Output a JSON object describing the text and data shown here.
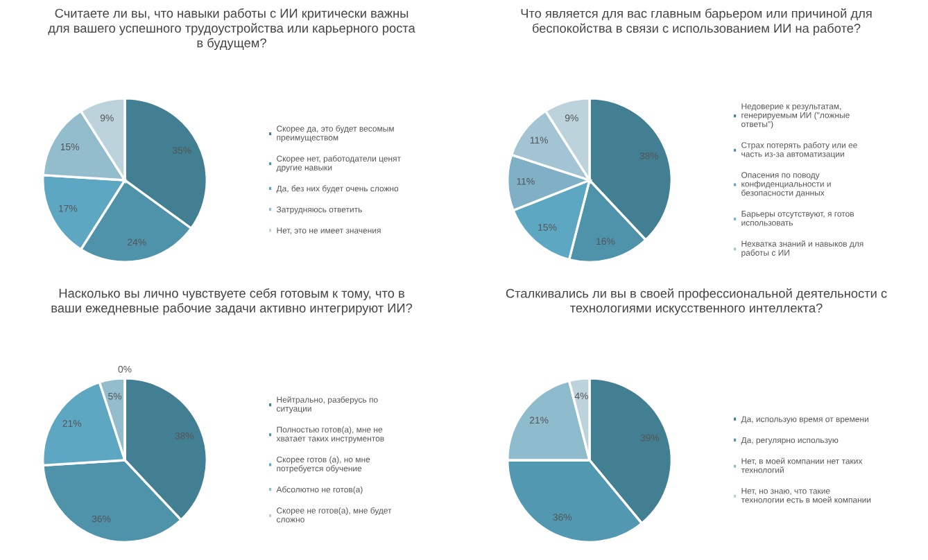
{
  "chart_data": [
    {
      "type": "pie",
      "title": "Считаете ли вы, что навыки работы с ИИ критически важны для вашего успешного трудоустройства или карьерного роста в будущем?",
      "categories": [
        "Скорее да, это будет весомым преимуществом",
        "Скорее нет, работодатели ценят другие навыки",
        "Да, без них будет очень сложно",
        "Затрудняюсь ответить",
        "Нет, это не имеет значения"
      ],
      "values": [
        35,
        24,
        17,
        15,
        9
      ],
      "value_labels": [
        "35%",
        "24%",
        "17%",
        "15%",
        "9%"
      ],
      "colors": [
        "#437f93",
        "#4f93ab",
        "#5ea7c2",
        "#93bccd",
        "#bcd3dc"
      ],
      "legend": "right"
    },
    {
      "type": "pie",
      "title": "Что является для вас главным барьером или причиной для беспокойства в связи с использованием ИИ на работе?",
      "categories": [
        "Недоверие к результатам, генерируемым ИИ (\"ложные ответы\")",
        "Страх потерять работу или ее часть из-за автоматизации",
        "Опасения по поводу конфиденциальности и безопасности данных",
        "Барьеры отсутствуют, я готов использовать",
        "Нехватка знаний и навыков для работы с ИИ",
        null
      ],
      "values": [
        38,
        16,
        15,
        11,
        11,
        9
      ],
      "value_labels": [
        "38%",
        "16%",
        "15%",
        "11%",
        "11%",
        "9%"
      ],
      "colors": [
        "#437f93",
        "#4f93ab",
        "#5ea7c2",
        "#7fb0c6",
        "#a3c5d3",
        "#bcd3dc"
      ],
      "legend": "right"
    },
    {
      "type": "pie",
      "title": "Насколько вы лично чувствуете себя готовым к тому, что в ваши ежедневные рабочие задачи активно интегрируют ИИ?",
      "categories": [
        "Нейтрально, разберусь по ситуации",
        "Полностью готов(а), мне не хватает таких инструментов",
        "Скорее готов (а), но мне потребуется обучение",
        "Абсолютно не готов(а)",
        "Скорее не готов(а), мне будет сложно"
      ],
      "values": [
        38,
        36,
        21,
        5,
        0
      ],
      "value_labels": [
        "38%",
        "36%",
        "21%",
        "5%",
        "0%"
      ],
      "colors": [
        "#437f93",
        "#4f93ab",
        "#5ea7c2",
        "#93bccd",
        "#bcd3dc"
      ],
      "legend": "right"
    },
    {
      "type": "pie",
      "title": "Сталкивались ли вы в своей профессиональной деятельности с технологиями искусственного интеллекта?",
      "categories": [
        "Да, использую время от времени",
        "Да, регулярно использую",
        "Нет, в моей компании нет таких технологий",
        "Нет, но знаю, что такие технологии есть в моей компании"
      ],
      "values": [
        39,
        36,
        21,
        4
      ],
      "value_labels": [
        "39%",
        "36%",
        "21%",
        "4%"
      ],
      "colors": [
        "#437f93",
        "#5398b1",
        "#8fbccd",
        "#bcd3dc"
      ],
      "legend": "right"
    }
  ]
}
